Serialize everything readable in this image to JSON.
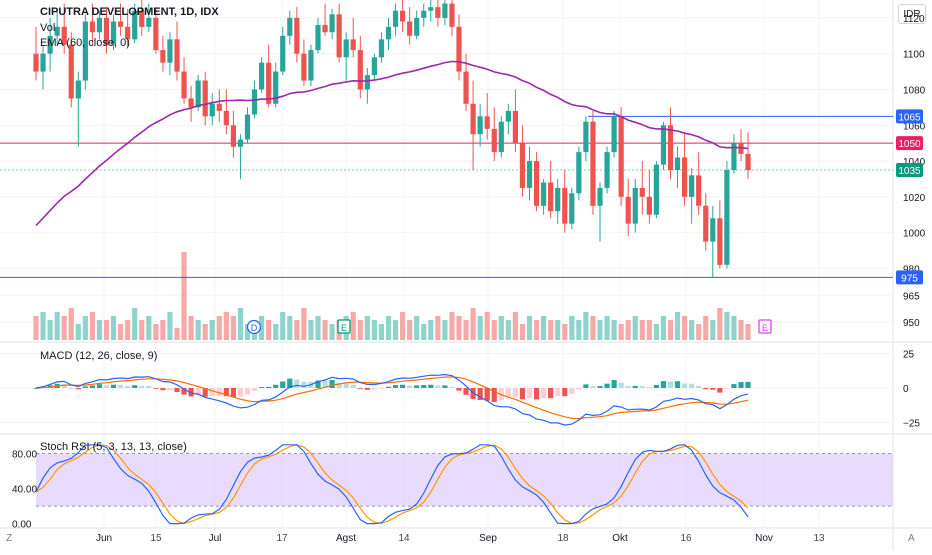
{
  "header": {
    "symbol_line": "CIPUTRA DEVELOPMENT, 1D, IDX",
    "vol_label": "Vol",
    "ema_label": "EMA (60, close, 0)",
    "currency": "IDR",
    "corner_left": "Z",
    "corner_right": "A"
  },
  "colors": {
    "up": "#26a69a",
    "down": "#ef5350",
    "ema": "#9c27b0",
    "macd": "#2962ff",
    "signal": "#ff6d00",
    "stoch_k": "#2962ff",
    "stoch_d": "#ff9800",
    "stoch_band": "#e1cffc",
    "hline_blue": "#2962ff",
    "hline_red": "#e91e63"
  },
  "chart_data": [
    {
      "type": "candlestick",
      "title": "CIPUTRA DEVELOPMENT, 1D, IDX",
      "y_axis_ticks": [
        950,
        965,
        980,
        1000,
        1020,
        1040,
        1060,
        1080,
        1100,
        1120
      ],
      "ylim": [
        940,
        1130
      ],
      "x_tick_labels": [
        "Jun",
        "15",
        "Jul",
        "17",
        "Agst",
        "14",
        "Sep",
        "18",
        "Okt",
        "16",
        "Nov",
        "13"
      ],
      "horizontal_levels": [
        {
          "label": "1065",
          "value": 1065,
          "color": "#2962ff"
        },
        {
          "label": "1050",
          "value": 1050,
          "color": "#e91e63"
        },
        {
          "label": "1035",
          "value": 1035,
          "color": "#089981"
        },
        {
          "label": "975",
          "value": 975,
          "color": "#2962ff"
        }
      ],
      "volume_markers": [
        "D",
        "E",
        "E"
      ],
      "candles": [
        [
          1100,
          1115,
          1085,
          1090
        ],
        [
          1090,
          1105,
          1080,
          1100
        ],
        [
          1100,
          1120,
          1090,
          1110
        ],
        [
          1110,
          1125,
          1105,
          1115
        ],
        [
          1115,
          1128,
          1100,
          1105
        ],
        [
          1105,
          1112,
          1070,
          1075
        ],
        [
          1075,
          1090,
          1048,
          1085
        ],
        [
          1085,
          1122,
          1080,
          1118
        ],
        [
          1118,
          1128,
          1105,
          1112
        ],
        [
          1112,
          1124,
          1108,
          1120
        ],
        [
          1120,
          1126,
          1100,
          1105
        ],
        [
          1105,
          1122,
          1102,
          1118
        ],
        [
          1118,
          1128,
          1110,
          1115
        ],
        [
          1115,
          1125,
          1104,
          1108
        ],
        [
          1108,
          1128,
          1106,
          1124
        ],
        [
          1124,
          1130,
          1110,
          1115
        ],
        [
          1115,
          1128,
          1112,
          1120
        ],
        [
          1120,
          1125,
          1100,
          1102
        ],
        [
          1102,
          1110,
          1090,
          1095
        ],
        [
          1095,
          1112,
          1088,
          1108
        ],
        [
          1108,
          1118,
          1085,
          1090
        ],
        [
          1090,
          1098,
          1072,
          1075
        ],
        [
          1075,
          1082,
          1062,
          1070
        ],
        [
          1070,
          1088,
          1068,
          1085
        ],
        [
          1085,
          1090,
          1060,
          1065
        ],
        [
          1065,
          1078,
          1060,
          1072
        ],
        [
          1072,
          1080,
          1062,
          1068
        ],
        [
          1068,
          1080,
          1055,
          1060
        ],
        [
          1060,
          1068,
          1042,
          1048
        ],
        [
          1048,
          1055,
          1030,
          1052
        ],
        [
          1052,
          1070,
          1050,
          1066
        ],
        [
          1066,
          1085,
          1064,
          1080
        ],
        [
          1080,
          1098,
          1078,
          1095
        ],
        [
          1095,
          1105,
          1070,
          1072
        ],
        [
          1072,
          1095,
          1070,
          1090
        ],
        [
          1090,
          1115,
          1088,
          1110
        ],
        [
          1110,
          1124,
          1105,
          1120
        ],
        [
          1120,
          1126,
          1095,
          1100
        ],
        [
          1100,
          1108,
          1082,
          1085
        ],
        [
          1085,
          1105,
          1082,
          1102
        ],
        [
          1102,
          1120,
          1100,
          1116
        ],
        [
          1116,
          1128,
          1110,
          1112
        ],
        [
          1112,
          1125,
          1108,
          1122
        ],
        [
          1122,
          1128,
          1095,
          1098
        ],
        [
          1098,
          1112,
          1085,
          1108
        ],
        [
          1108,
          1120,
          1098,
          1102
        ],
        [
          1102,
          1110,
          1075,
          1080
        ],
        [
          1080,
          1092,
          1072,
          1088
        ],
        [
          1088,
          1100,
          1085,
          1098
        ],
        [
          1098,
          1112,
          1095,
          1108
        ],
        [
          1108,
          1120,
          1102,
          1115
        ],
        [
          1115,
          1128,
          1110,
          1124
        ],
        [
          1124,
          1130,
          1112,
          1118
        ],
        [
          1118,
          1126,
          1105,
          1110
        ],
        [
          1110,
          1124,
          1108,
          1120
        ],
        [
          1120,
          1128,
          1115,
          1124
        ],
        [
          1124,
          1130,
          1118,
          1126
        ],
        [
          1126,
          1130,
          1115,
          1120
        ],
        [
          1120,
          1130,
          1116,
          1128
        ],
        [
          1128,
          1130,
          1110,
          1115
        ],
        [
          1115,
          1122,
          1085,
          1090
        ],
        [
          1090,
          1100,
          1068,
          1072
        ],
        [
          1072,
          1085,
          1035,
          1055
        ],
        [
          1055,
          1072,
          1048,
          1065
        ],
        [
          1065,
          1078,
          1052,
          1058
        ],
        [
          1058,
          1070,
          1040,
          1045
        ],
        [
          1045,
          1065,
          1042,
          1062
        ],
        [
          1062,
          1072,
          1055,
          1068
        ],
        [
          1068,
          1080,
          1045,
          1050
        ],
        [
          1050,
          1060,
          1020,
          1025
        ],
        [
          1025,
          1048,
          1018,
          1040
        ],
        [
          1040,
          1045,
          1012,
          1015
        ],
        [
          1015,
          1030,
          1010,
          1028
        ],
        [
          1028,
          1040,
          1008,
          1012
        ],
        [
          1012,
          1030,
          1005,
          1025
        ],
        [
          1025,
          1035,
          1000,
          1005
        ],
        [
          1005,
          1025,
          1002,
          1022
        ],
        [
          1022,
          1048,
          1018,
          1045
        ],
        [
          1045,
          1065,
          1040,
          1062
        ],
        [
          1062,
          1068,
          1010,
          1015
        ],
        [
          1015,
          1028,
          995,
          1025
        ],
        [
          1025,
          1048,
          1022,
          1045
        ],
        [
          1045,
          1068,
          1042,
          1065
        ],
        [
          1065,
          1070,
          1015,
          1020
        ],
        [
          1020,
          1030,
          998,
          1005
        ],
        [
          1005,
          1030,
          1000,
          1025
        ],
        [
          1025,
          1040,
          1010,
          1020
        ],
        [
          1020,
          1035,
          1005,
          1010
        ],
        [
          1010,
          1040,
          1008,
          1038
        ],
        [
          1038,
          1062,
          1035,
          1060
        ],
        [
          1060,
          1070,
          1030,
          1035
        ],
        [
          1035,
          1048,
          1025,
          1042
        ],
        [
          1042,
          1055,
          1015,
          1020
        ],
        [
          1020,
          1036,
          1005,
          1032
        ],
        [
          1032,
          1045,
          1010,
          1015
        ],
        [
          1015,
          1022,
          990,
          995
        ],
        [
          995,
          1015,
          975,
          1008
        ],
        [
          1008,
          1018,
          980,
          982
        ],
        [
          982,
          1040,
          980,
          1035
        ],
        [
          1035,
          1055,
          1033,
          1050
        ],
        [
          1050,
          1058,
          1040,
          1044
        ],
        [
          1044,
          1056,
          1030,
          1035
        ]
      ],
      "volumes": [
        6,
        7,
        5,
        7,
        6,
        8,
        4,
        6,
        7,
        5,
        5,
        6,
        4,
        5,
        8,
        5,
        6,
        4,
        5,
        7,
        3,
        22,
        6,
        5,
        4,
        5,
        6,
        7,
        6,
        8,
        4,
        5,
        6,
        5,
        4,
        7,
        6,
        5,
        8,
        5,
        6,
        5,
        4,
        5,
        6,
        7,
        5,
        6,
        5,
        4,
        6,
        5,
        7,
        5,
        6,
        4,
        5,
        6,
        5,
        7,
        6,
        5,
        8,
        6,
        7,
        5,
        6,
        5,
        7,
        4,
        6,
        5,
        6,
        5,
        5,
        4,
        6,
        5,
        7,
        6,
        5,
        6,
        5,
        4,
        5,
        6,
        5,
        5,
        4,
        6,
        5,
        7,
        6,
        5,
        4,
        6,
        5,
        8,
        7,
        6,
        5,
        4
      ]
    },
    {
      "type": "line",
      "title": "MACD (12, 26, close, 9)",
      "y_axis_ticks": [
        25,
        0,
        -25
      ],
      "ylim": [
        -32,
        32
      ],
      "series": [
        {
          "name": "MACD",
          "key": "macd"
        },
        {
          "name": "Signal",
          "key": "signal"
        },
        {
          "name": "Histogram",
          "key": "hist"
        }
      ]
    },
    {
      "type": "line",
      "title": "Stoch RSI (5, 3, 13, 13, close)",
      "y_axis_ticks": [
        "80.00",
        "40.00",
        "0.00"
      ],
      "ylim": [
        -5,
        100
      ],
      "band": [
        20,
        80
      ],
      "series": [
        {
          "name": "K",
          "key": "k"
        },
        {
          "name": "D",
          "key": "d"
        }
      ]
    }
  ],
  "price_labels": {
    "p1120": "1120",
    "p1100": "1100",
    "p1080": "1080",
    "p1060": "1060",
    "p1040": "1040",
    "p1020": "1020",
    "p1000": "1000",
    "p980": "980",
    "p965": "965",
    "p950": "950",
    "m25": "25",
    "m0": "0",
    "mn25": "−25",
    "s80": "80.00",
    "s40": "40.00",
    "s0": "0.00"
  }
}
